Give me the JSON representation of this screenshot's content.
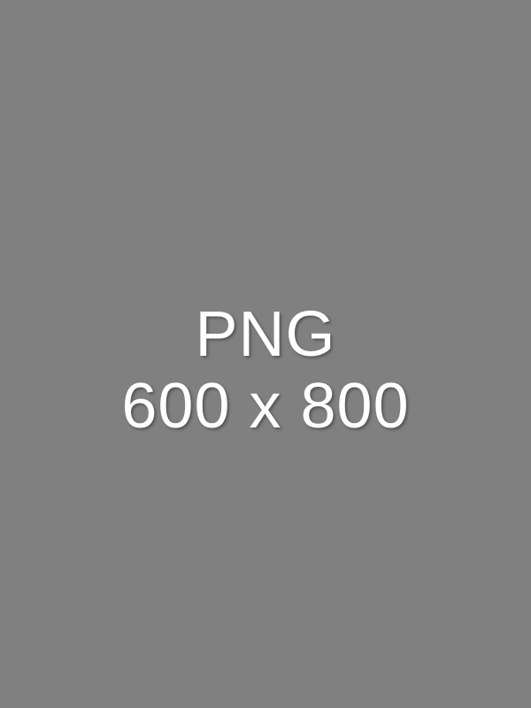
{
  "placeholder": {
    "line1": "PNG",
    "line2": "600 x 800",
    "background_color": "#808080",
    "text_color": "#ffffff"
  }
}
